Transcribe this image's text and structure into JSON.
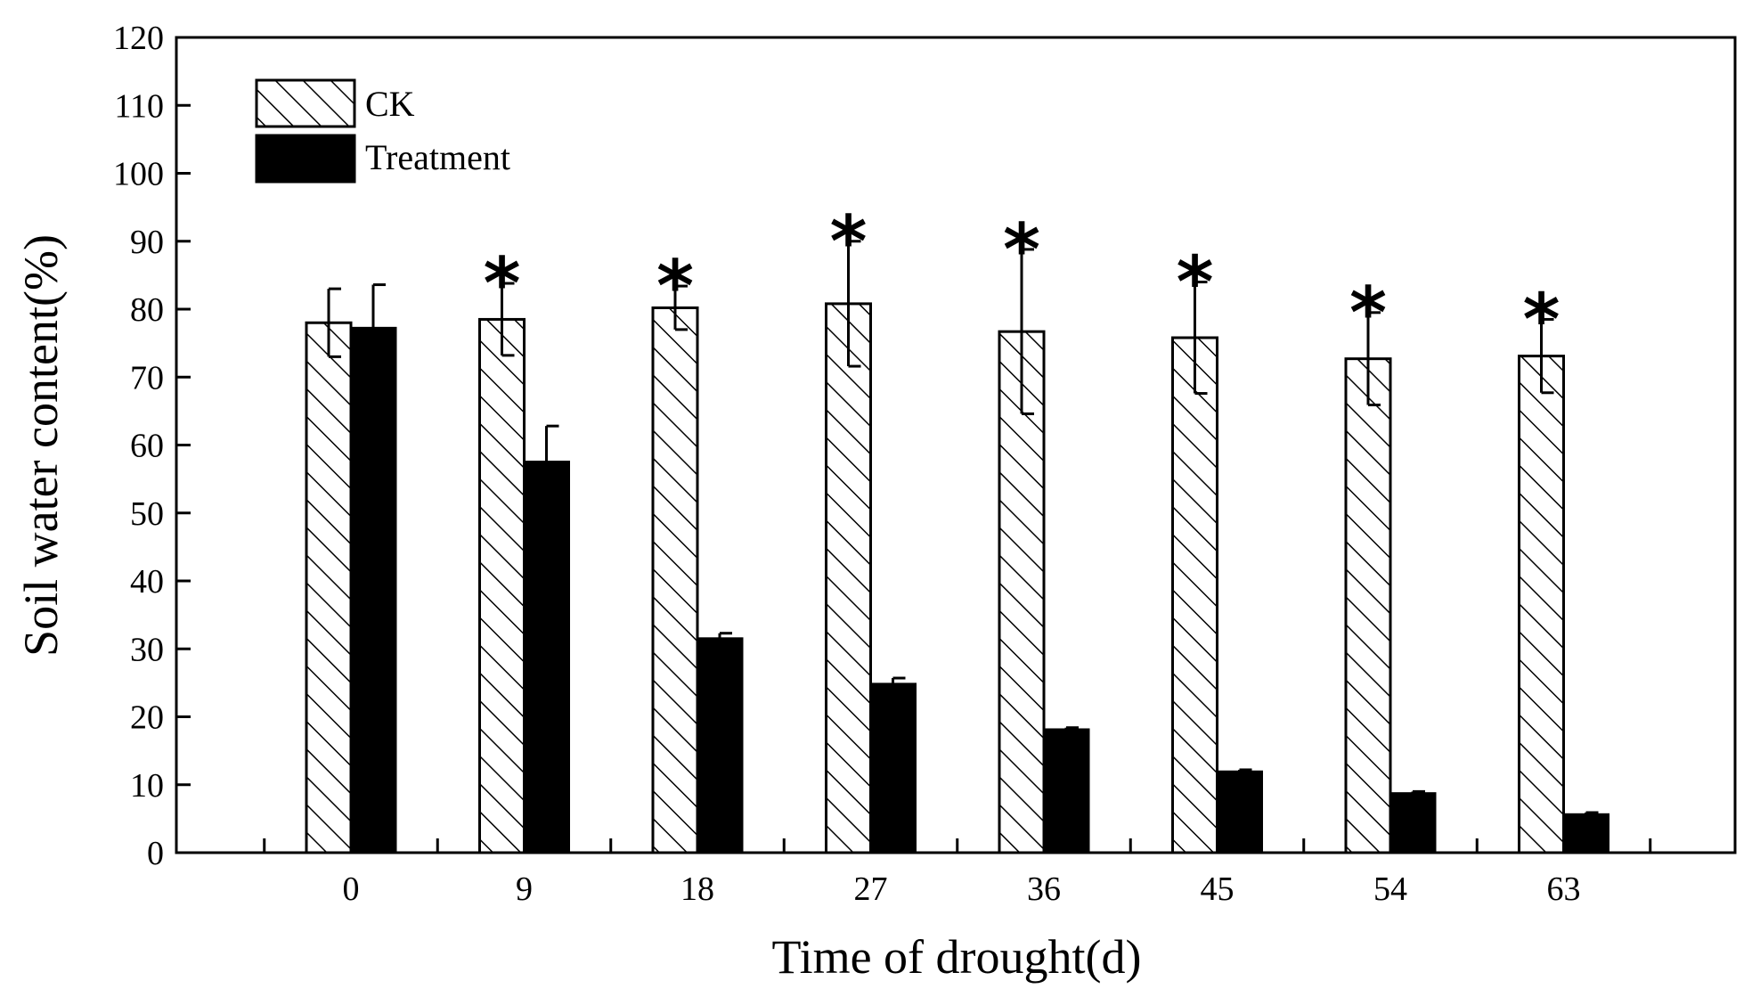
{
  "chart_data": {
    "type": "bar",
    "title": "",
    "xlabel": "Time of drought(d)",
    "ylabel": "Soil water content(%)",
    "ylim": [
      0,
      120
    ],
    "yticks": [
      0,
      10,
      20,
      30,
      40,
      50,
      60,
      70,
      80,
      90,
      100,
      110,
      120
    ],
    "grid": false,
    "legend_position": "top-left",
    "categories": [
      "0",
      "9",
      "18",
      "27",
      "36",
      "45",
      "54",
      "63"
    ],
    "series": [
      {
        "name": "CK",
        "pattern": "hatched",
        "values": [
          78,
          78.5,
          80.2,
          80.8,
          76.7,
          75.8,
          72.7,
          73.1
        ],
        "errors": [
          5,
          5.3,
          3.2,
          9.2,
          12.1,
          8.2,
          6.8,
          5.4
        ]
      },
      {
        "name": "Treatment",
        "pattern": "solid",
        "values": [
          77.2,
          57.5,
          31.5,
          24.8,
          18.1,
          11.9,
          8.7,
          5.6
        ],
        "errors": [
          6.4,
          5.3,
          0.8,
          0.9,
          0.3,
          0.3,
          0.3,
          0.3
        ]
      }
    ],
    "significance": {
      "marker": "*",
      "categories": [
        "9",
        "18",
        "27",
        "36",
        "45",
        "54",
        "63"
      ]
    }
  },
  "colors": {
    "axis": "#000000",
    "ck_fill": "#ffffff",
    "treatment_fill": "#000000"
  }
}
